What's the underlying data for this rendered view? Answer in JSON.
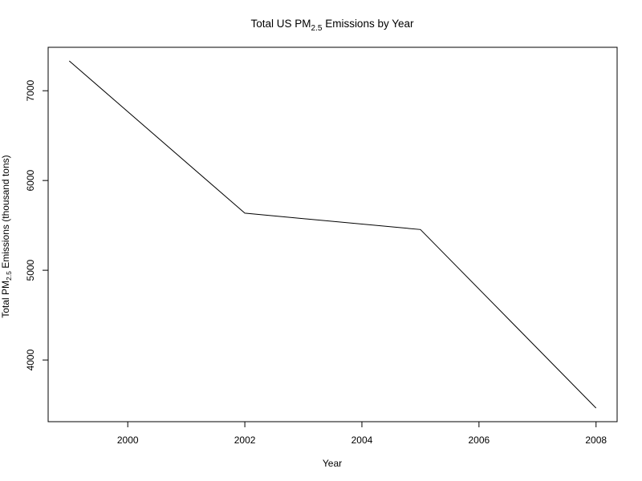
{
  "chart_data": {
    "type": "line",
    "title": {
      "prefix": "Total US PM",
      "subscript": "2.5",
      "suffix": " Emissions by Year"
    },
    "xlabel": "Year",
    "ylabel": {
      "prefix": "Total PM",
      "subscript": "2.5",
      "suffix": " Emissions (thousand tons)"
    },
    "x": [
      1999,
      2002,
      2005,
      2008
    ],
    "series": [
      {
        "values": [
          7332,
          5636,
          5454,
          3465
        ],
        "color": "#000000"
      }
    ],
    "xlim": [
      1998.64,
      2008.36
    ],
    "ylim": [
      3313,
      7484
    ],
    "xticks": [
      2000,
      2002,
      2004,
      2006,
      2008
    ],
    "xticklabels": [
      "2000",
      "2002",
      "2004",
      "2006",
      "2008"
    ],
    "yticks": [
      4000,
      5000,
      6000,
      7000
    ],
    "yticklabels": [
      "4000",
      "5000",
      "6000",
      "7000"
    ],
    "grid": false,
    "legend": "none"
  }
}
